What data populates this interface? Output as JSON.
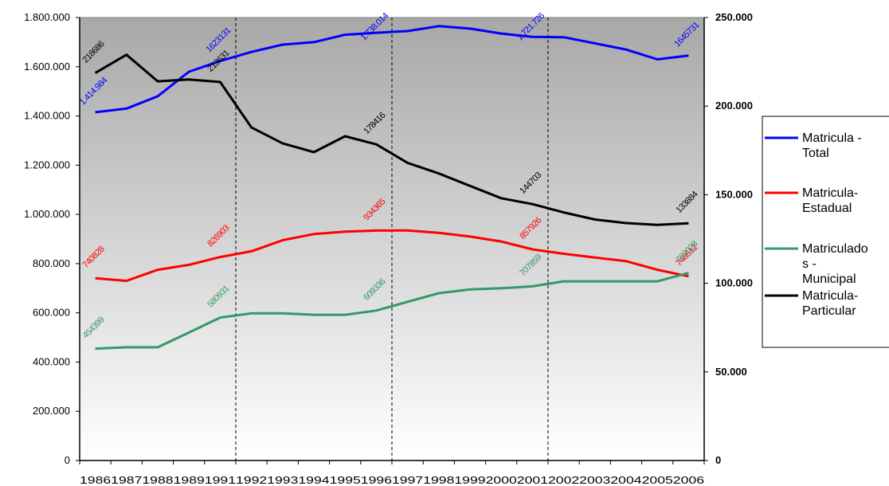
{
  "chart_data": {
    "type": "line",
    "title": "",
    "xlabel": "",
    "ylabel": "",
    "categories": [
      "1986",
      "1987",
      "1988",
      "1989",
      "1991",
      "1992",
      "1993",
      "1994",
      "1995",
      "1996",
      "1997",
      "1998",
      "1999",
      "2000",
      "2001",
      "2002",
      "2003",
      "2004",
      "2005",
      "2006"
    ],
    "x_tick_labels": [
      "1986",
      "1987",
      "1988",
      "1989",
      "1991",
      "1992",
      "1993",
      "1994",
      "1995",
      "1996",
      "1997",
      "1998",
      "1999",
      "2000",
      "2001",
      "2002",
      "2003",
      "2004",
      "2005",
      "2006"
    ],
    "y_left": {
      "range": [
        0,
        1800000
      ],
      "ticks": [
        0,
        200000,
        400000,
        600000,
        800000,
        1000000,
        1200000,
        1400000,
        1600000,
        1800000
      ],
      "tick_labels": [
        "0",
        "200.000",
        "400.000",
        "600.000",
        "800.000",
        "1.000.000",
        "1.200.000",
        "1.400.000",
        "1.600.000",
        "1.800.000"
      ]
    },
    "y_right": {
      "range": [
        0,
        250000
      ],
      "ticks": [
        0,
        50000,
        100000,
        150000,
        200000,
        250000
      ],
      "tick_labels": [
        "0",
        "50.000",
        "100.000",
        "150.000",
        "200.000",
        "250.000"
      ]
    },
    "grid": false,
    "vertical_dividers_after": [
      "1991",
      "1996",
      "2001"
    ],
    "legend_position": "right",
    "series": [
      {
        "name": "Matricula - Total",
        "legend_lines": [
          "Matricula -",
          "Total"
        ],
        "color": "#0000FF",
        "axis": "left",
        "values": [
          1414984,
          1430000,
          1480000,
          1580000,
          1623131,
          1660000,
          1690000,
          1700000,
          1730000,
          1738014,
          1745000,
          1765000,
          1755000,
          1735000,
          1721726,
          1720000,
          1695000,
          1670000,
          1630000,
          1645731
        ],
        "data_labels": [
          {
            "index": 0,
            "text": "1.414.984"
          },
          {
            "index": 4,
            "text": "1623131"
          },
          {
            "index": 9,
            "text": "1.738.014"
          },
          {
            "index": 14,
            "text": "1.721.726"
          },
          {
            "index": 19,
            "text": "1645731"
          }
        ]
      },
      {
        "name": "Matricula- Estadual",
        "legend_lines": [
          "Matricula-",
          "Estadual"
        ],
        "color": "#FF0000",
        "axis": "left",
        "values": [
          740828,
          730000,
          775000,
          795000,
          826903,
          850000,
          895000,
          920000,
          930000,
          934365,
          935000,
          925000,
          910000,
          890000,
          857926,
          840000,
          825000,
          810000,
          775000,
          748512
        ],
        "data_labels": [
          {
            "index": 0,
            "text": "740828"
          },
          {
            "index": 4,
            "text": "826903"
          },
          {
            "index": 9,
            "text": "934365"
          },
          {
            "index": 14,
            "text": "857926"
          },
          {
            "index": 19,
            "text": "748512"
          }
        ]
      },
      {
        "name": "Matriculados - Municipal",
        "legend_lines": [
          "Matriculado",
          "s -",
          "Municipal"
        ],
        "color": "#339966",
        "axis": "left",
        "values": [
          454399,
          460000,
          460000,
          520000,
          580931,
          598000,
          598000,
          592000,
          592000,
          609336,
          645000,
          680000,
          695000,
          700000,
          707859,
          728000,
          728000,
          728000,
          728000,
          762028
        ],
        "data_labels": [
          {
            "index": 0,
            "text": "454399"
          },
          {
            "index": 4,
            "text": "580931"
          },
          {
            "index": 9,
            "text": "609336"
          },
          {
            "index": 14,
            "text": "707859"
          },
          {
            "index": 19,
            "text": "762028"
          }
        ]
      },
      {
        "name": "Matricula- Particular",
        "legend_lines": [
          "Matricula-",
          "Particular"
        ],
        "color": "#000000",
        "axis": "right",
        "values": [
          218686,
          229000,
          214000,
          215000,
          213631,
          188000,
          179000,
          174000,
          183000,
          178416,
          168000,
          162000,
          155000,
          148000,
          144703,
          140000,
          136000,
          134000,
          133000,
          133884
        ],
        "data_labels": [
          {
            "index": 0,
            "text": "218686"
          },
          {
            "index": 4,
            "text": "213631"
          },
          {
            "index": 9,
            "text": "178416"
          },
          {
            "index": 14,
            "text": "144703"
          },
          {
            "index": 19,
            "text": "133884"
          }
        ]
      }
    ]
  }
}
